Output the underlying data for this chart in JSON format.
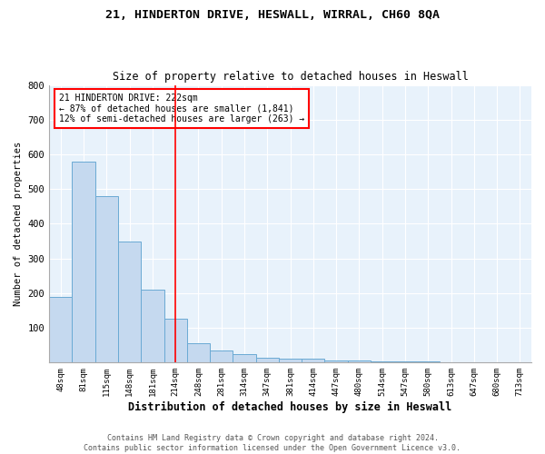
{
  "title1": "21, HINDERTON DRIVE, HESWALL, WIRRAL, CH60 8QA",
  "title2": "Size of property relative to detached houses in Heswall",
  "xlabel": "Distribution of detached houses by size in Heswall",
  "ylabel": "Number of detached properties",
  "bar_labels": [
    "48sqm",
    "81sqm",
    "115sqm",
    "148sqm",
    "181sqm",
    "214sqm",
    "248sqm",
    "281sqm",
    "314sqm",
    "347sqm",
    "381sqm",
    "414sqm",
    "447sqm",
    "480sqm",
    "514sqm",
    "547sqm",
    "580sqm",
    "613sqm",
    "647sqm",
    "680sqm",
    "713sqm"
  ],
  "bar_heights": [
    190,
    580,
    480,
    350,
    210,
    125,
    55,
    35,
    25,
    15,
    10,
    10,
    7,
    5,
    3,
    3,
    2,
    1,
    1,
    1,
    0
  ],
  "bar_color": "#c5d9ef",
  "bar_edge_color": "#6aaad4",
  "red_line_index": 5,
  "annotation_line1": "21 HINDERTON DRIVE: 222sqm",
  "annotation_line2": "← 87% of detached houses are smaller (1,841)",
  "annotation_line3": "12% of semi-detached houses are larger (263) →",
  "ylim": [
    0,
    800
  ],
  "yticks": [
    0,
    100,
    200,
    300,
    400,
    500,
    600,
    700,
    800
  ],
  "footer": "Contains HM Land Registry data © Crown copyright and database right 2024.\nContains public sector information licensed under the Open Government Licence v3.0.",
  "plot_bg_color": "#e8f2fb",
  "fig_bg_color": "#ffffff",
  "grid_color": "#ffffff"
}
